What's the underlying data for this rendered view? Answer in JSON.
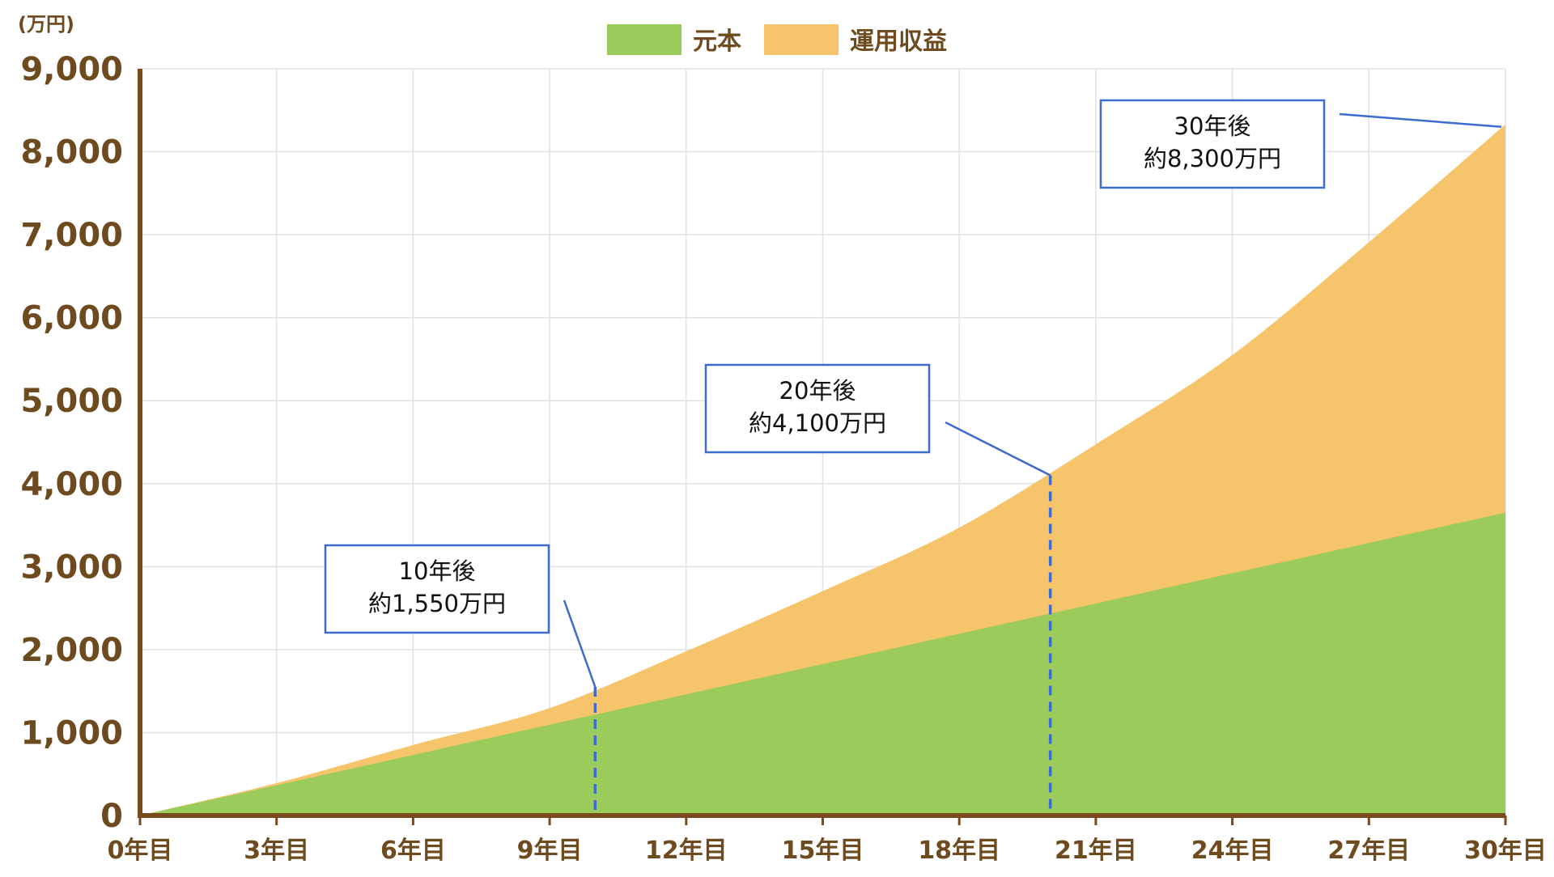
{
  "chart_data": {
    "type": "area",
    "title": "",
    "y_unit_label": "(万円)",
    "xlabel": "",
    "ylabel": "",
    "x_tick_labels": [
      "0年目",
      "3年目",
      "6年目",
      "9年目",
      "12年目",
      "15年目",
      "18年目",
      "21年目",
      "24年目",
      "27年目",
      "30年目"
    ],
    "x_tick_values": [
      0,
      3,
      6,
      9,
      12,
      15,
      18,
      21,
      24,
      27,
      30
    ],
    "y_tick_labels": [
      "0",
      "1,000",
      "2,000",
      "3,000",
      "4,000",
      "5,000",
      "6,000",
      "7,000",
      "8,000",
      "9,000"
    ],
    "y_tick_values": [
      0,
      1000,
      2000,
      3000,
      4000,
      5000,
      6000,
      7000,
      8000,
      9000
    ],
    "xlim": [
      0,
      30
    ],
    "ylim": [
      0,
      9000
    ],
    "grid": true,
    "legend_position": "top-center",
    "stacked": true,
    "x": [
      0,
      3,
      6,
      9,
      12,
      15,
      18,
      21,
      24,
      27,
      30
    ],
    "series": [
      {
        "name": "元本",
        "color": "#9bcb5a",
        "values": [
          0,
          365,
          730,
          1095,
          1460,
          1825,
          2190,
          2555,
          2920,
          3285,
          3650
        ]
      },
      {
        "name": "運用収益",
        "color": "#f6c46a",
        "values": [
          0,
          25,
          120,
          200,
          520,
          880,
          1280,
          1920,
          2630,
          3625,
          4680
        ]
      }
    ],
    "totals": [
      0,
      390,
      850,
      1295,
      1980,
      2705,
      3470,
      4475,
      5550,
      6910,
      8330
    ],
    "markers": [
      {
        "x": 10,
        "y": 1550,
        "dashed_to_axis": true
      },
      {
        "x": 20,
        "y": 4100,
        "dashed_to_axis": true
      },
      {
        "x": 30,
        "y": 8300,
        "dashed_to_axis": false
      }
    ],
    "annotations": [
      {
        "line1": "10年後",
        "line2": "約1,550万円"
      },
      {
        "line1": "20年後",
        "line2": "約4,100万円"
      },
      {
        "line1": "30年後",
        "line2": "約8,300万円"
      }
    ],
    "colors": {
      "axis": "#7a4a1e",
      "tick_text": "#6e4a1f",
      "grid": "#e2e2e2",
      "annotation_border": "#3d6ccf",
      "dashed_line": "#3d6ccf"
    }
  }
}
